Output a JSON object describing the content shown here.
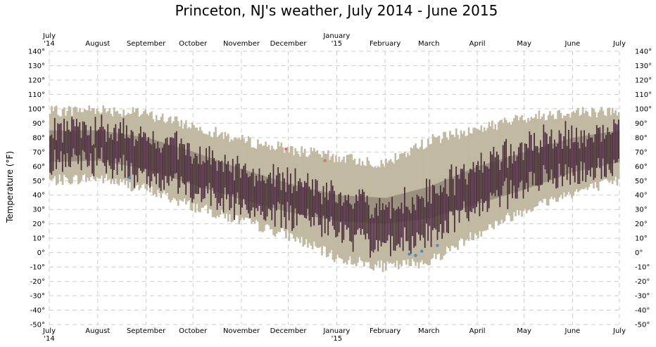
{
  "chart_data": {
    "type": "bar",
    "title": "Princeton, NJ's weather, July 2014 - June 2015",
    "ylabel": "Temperature (°F)",
    "xlabel": "",
    "ylim": [
      -50,
      140
    ],
    "y_ticks": [
      -50,
      -40,
      -30,
      -20,
      -10,
      0,
      10,
      20,
      30,
      40,
      50,
      60,
      70,
      80,
      90,
      100,
      110,
      120,
      130,
      140
    ],
    "y_tick_suffix": "°",
    "x_ticks": [
      {
        "date": "2014-07-01",
        "label": [
          "July",
          "'14"
        ]
      },
      {
        "date": "2014-08-01",
        "label": [
          "August"
        ]
      },
      {
        "date": "2014-09-01",
        "label": [
          "September"
        ]
      },
      {
        "date": "2014-10-01",
        "label": [
          "October"
        ]
      },
      {
        "date": "2014-11-01",
        "label": [
          "November"
        ]
      },
      {
        "date": "2014-12-01",
        "label": [
          "December"
        ]
      },
      {
        "date": "2015-01-01",
        "label": [
          "January",
          "'15"
        ]
      },
      {
        "date": "2015-02-01",
        "label": [
          "February"
        ]
      },
      {
        "date": "2015-03-01",
        "label": [
          "March"
        ]
      },
      {
        "date": "2015-04-01",
        "label": [
          "April"
        ]
      },
      {
        "date": "2015-05-01",
        "label": [
          "May"
        ]
      },
      {
        "date": "2015-06-01",
        "label": [
          "June"
        ]
      },
      {
        "date": "2015-07-01",
        "label": [
          "July"
        ]
      }
    ],
    "date_range": [
      "2014-07-01",
      "2015-06-30"
    ],
    "grid": true,
    "colors": {
      "record_band": "#c1b9a1",
      "normal_band": "#9b917f",
      "actual_bar": "#4b2d3d",
      "record_high_point": "#e5736a",
      "record_low_point": "#4a90c8",
      "grid": "#cccccc"
    },
    "series": [
      {
        "kind": "record",
        "anchors": [
          {
            "date": "2014-07-01",
            "low": 50,
            "high": 98
          },
          {
            "date": "2014-08-01",
            "low": 52,
            "high": 100
          },
          {
            "date": "2014-09-01",
            "low": 44,
            "high": 96
          },
          {
            "date": "2014-10-01",
            "low": 32,
            "high": 88
          },
          {
            "date": "2014-11-01",
            "low": 22,
            "high": 78
          },
          {
            "date": "2014-12-01",
            "low": 12,
            "high": 72
          },
          {
            "date": "2015-01-01",
            "low": -4,
            "high": 66
          },
          {
            "date": "2015-02-01",
            "low": -10,
            "high": 62
          },
          {
            "date": "2015-03-01",
            "low": -6,
            "high": 78
          },
          {
            "date": "2015-04-01",
            "low": 14,
            "high": 86
          },
          {
            "date": "2015-05-01",
            "low": 30,
            "high": 94
          },
          {
            "date": "2015-06-01",
            "low": 42,
            "high": 98
          },
          {
            "date": "2015-07-01",
            "low": 50,
            "high": 98
          }
        ]
      },
      {
        "kind": "normal",
        "anchors": [
          {
            "date": "2014-07-01",
            "low": 63,
            "high": 85
          },
          {
            "date": "2014-08-01",
            "low": 64,
            "high": 85
          },
          {
            "date": "2014-09-01",
            "low": 58,
            "high": 80
          },
          {
            "date": "2014-10-01",
            "low": 47,
            "high": 70
          },
          {
            "date": "2014-11-01",
            "low": 37,
            "high": 58
          },
          {
            "date": "2014-12-01",
            "low": 28,
            "high": 48
          },
          {
            "date": "2015-01-01",
            "low": 22,
            "high": 40
          },
          {
            "date": "2015-02-01",
            "low": 20,
            "high": 38
          },
          {
            "date": "2015-03-01",
            "low": 24,
            "high": 46
          },
          {
            "date": "2015-04-01",
            "low": 34,
            "high": 60
          },
          {
            "date": "2015-05-01",
            "low": 44,
            "high": 70
          },
          {
            "date": "2015-06-01",
            "low": 56,
            "high": 80
          },
          {
            "date": "2015-07-01",
            "low": 63,
            "high": 85
          }
        ]
      },
      {
        "kind": "actual",
        "anchors": [
          {
            "date": "2014-07-01",
            "low": 66,
            "high": 85
          },
          {
            "date": "2014-08-01",
            "low": 66,
            "high": 82
          },
          {
            "date": "2014-09-01",
            "low": 56,
            "high": 78
          },
          {
            "date": "2014-10-01",
            "low": 48,
            "high": 68
          },
          {
            "date": "2014-11-01",
            "low": 34,
            "high": 55
          },
          {
            "date": "2014-12-01",
            "low": 28,
            "high": 46
          },
          {
            "date": "2015-01-01",
            "low": 18,
            "high": 36
          },
          {
            "date": "2015-02-01",
            "low": 6,
            "high": 26
          },
          {
            "date": "2015-03-01",
            "low": 16,
            "high": 38
          },
          {
            "date": "2015-04-01",
            "low": 36,
            "high": 58
          },
          {
            "date": "2015-05-01",
            "low": 50,
            "high": 72
          },
          {
            "date": "2015-06-01",
            "low": 58,
            "high": 78
          },
          {
            "date": "2015-07-01",
            "low": 62,
            "high": 82
          }
        ]
      }
    ],
    "record_high_points": [
      {
        "date": "2014-11-29",
        "value": 72
      },
      {
        "date": "2014-12-24",
        "value": 64
      }
    ],
    "record_low_points": [
      {
        "date": "2014-08-21",
        "value": 52
      },
      {
        "date": "2015-02-16",
        "value": -1
      },
      {
        "date": "2015-02-20",
        "value": -2
      },
      {
        "date": "2015-02-24",
        "value": 1
      },
      {
        "date": "2015-03-06",
        "value": 5
      }
    ]
  }
}
